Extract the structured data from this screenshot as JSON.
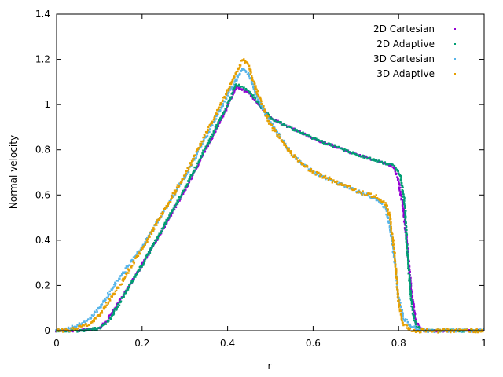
{
  "chart_data": {
    "type": "scatter",
    "xlabel": "r",
    "ylabel": "Normal velocity",
    "xlim": [
      0,
      1
    ],
    "ylim": [
      0,
      1.4
    ],
    "xticks": [
      "0",
      "0.2",
      "0.4",
      "0.6",
      "0.8",
      "1"
    ],
    "yticks": [
      "0",
      "0.2",
      "0.4",
      "0.6",
      "0.8",
      "1",
      "1.2",
      "1.4"
    ],
    "legend_position": "top-right",
    "grid": false,
    "series": [
      {
        "name": "2D Cartesian",
        "color": "#9400d3",
        "points": [
          [
            0,
            0
          ],
          [
            0.05,
            0
          ],
          [
            0.1,
            0.01
          ],
          [
            0.12,
            0.05
          ],
          [
            0.15,
            0.14
          ],
          [
            0.2,
            0.29
          ],
          [
            0.3,
            0.62
          ],
          [
            0.4,
            0.99
          ],
          [
            0.42,
            1.08
          ],
          [
            0.45,
            1.05
          ],
          [
            0.5,
            0.94
          ],
          [
            0.6,
            0.85
          ],
          [
            0.7,
            0.78
          ],
          [
            0.77,
            0.74
          ],
          [
            0.79,
            0.72
          ],
          [
            0.8,
            0.66
          ],
          [
            0.81,
            0.55
          ],
          [
            0.82,
            0.38
          ],
          [
            0.83,
            0.17
          ],
          [
            0.84,
            0.04
          ],
          [
            0.86,
            0
          ],
          [
            1,
            0
          ]
        ]
      },
      {
        "name": "2D Adaptive",
        "color": "#009e73",
        "points": [
          [
            0,
            0
          ],
          [
            0.05,
            0
          ],
          [
            0.1,
            0.01
          ],
          [
            0.12,
            0.04
          ],
          [
            0.15,
            0.13
          ],
          [
            0.2,
            0.29
          ],
          [
            0.3,
            0.63
          ],
          [
            0.4,
            1.0
          ],
          [
            0.42,
            1.09
          ],
          [
            0.45,
            1.06
          ],
          [
            0.5,
            0.94
          ],
          [
            0.6,
            0.85
          ],
          [
            0.7,
            0.78
          ],
          [
            0.77,
            0.74
          ],
          [
            0.79,
            0.73
          ],
          [
            0.805,
            0.68
          ],
          [
            0.815,
            0.55
          ],
          [
            0.82,
            0.35
          ],
          [
            0.83,
            0.12
          ],
          [
            0.84,
            0.02
          ],
          [
            0.86,
            0
          ],
          [
            1,
            0
          ]
        ]
      },
      {
        "name": "3D Cartesian",
        "color": "#56b4e9",
        "points": [
          [
            0,
            0
          ],
          [
            0.03,
            0.01
          ],
          [
            0.07,
            0.04
          ],
          [
            0.1,
            0.1
          ],
          [
            0.15,
            0.24
          ],
          [
            0.2,
            0.37
          ],
          [
            0.3,
            0.68
          ],
          [
            0.4,
            1.04
          ],
          [
            0.435,
            1.16
          ],
          [
            0.45,
            1.13
          ],
          [
            0.47,
            1.03
          ],
          [
            0.5,
            0.92
          ],
          [
            0.55,
            0.78
          ],
          [
            0.6,
            0.7
          ],
          [
            0.7,
            0.62
          ],
          [
            0.75,
            0.58
          ],
          [
            0.77,
            0.54
          ],
          [
            0.78,
            0.46
          ],
          [
            0.79,
            0.32
          ],
          [
            0.8,
            0.15
          ],
          [
            0.81,
            0.06
          ],
          [
            0.83,
            0.02
          ],
          [
            0.85,
            0
          ],
          [
            1,
            0
          ]
        ]
      },
      {
        "name": "3D Adaptive",
        "color": "#e69f00",
        "points": [
          [
            0,
            0
          ],
          [
            0.05,
            0.01
          ],
          [
            0.08,
            0.03
          ],
          [
            0.1,
            0.07
          ],
          [
            0.15,
            0.21
          ],
          [
            0.2,
            0.36
          ],
          [
            0.3,
            0.69
          ],
          [
            0.4,
            1.06
          ],
          [
            0.435,
            1.2
          ],
          [
            0.45,
            1.17
          ],
          [
            0.47,
            1.05
          ],
          [
            0.5,
            0.91
          ],
          [
            0.55,
            0.78
          ],
          [
            0.6,
            0.7
          ],
          [
            0.7,
            0.62
          ],
          [
            0.75,
            0.59
          ],
          [
            0.77,
            0.56
          ],
          [
            0.78,
            0.5
          ],
          [
            0.79,
            0.35
          ],
          [
            0.8,
            0.12
          ],
          [
            0.81,
            0.03
          ],
          [
            0.83,
            0
          ],
          [
            1,
            0
          ]
        ]
      }
    ]
  }
}
